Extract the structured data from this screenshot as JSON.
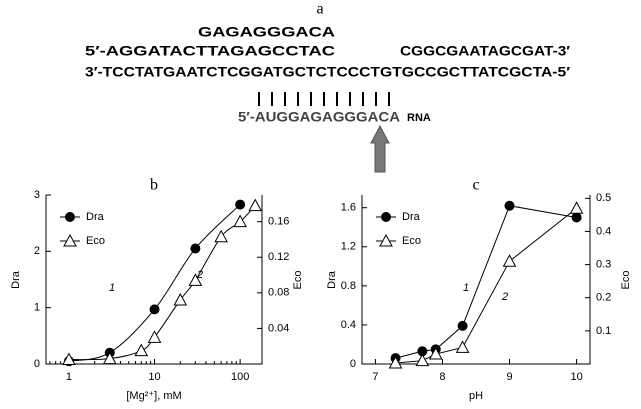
{
  "panel_a": {
    "label": "a",
    "top_strand": "GAGAGGGACA",
    "strand_5_left": "5′-AGGATACTTAGAGCCTAC",
    "strand_5_right": "CGGCGAATAGCGAT-3′",
    "strand_3": "3′-TCCTATGAATCTCGGATGCTCTCCCTGTGCCGCTTATCGCTA-5′",
    "rna_seq": "5′-AUGGAGAGGGACA",
    "rna_label": "RNA"
  },
  "chart_data": [
    {
      "type": "line",
      "panel_label": "b",
      "xlabel": "[Mg²⁺], mM",
      "ylabel": "Dra",
      "y2label": "Eco",
      "xscale": "log",
      "curve": "smooth",
      "xlim": [
        0.54,
        180
      ],
      "xticks": [
        1,
        10,
        100
      ],
      "ylim": [
        0,
        3
      ],
      "yticks": [
        0,
        1,
        2,
        3
      ],
      "y2lim": [
        0,
        0.19
      ],
      "y2ticks": [
        0.04,
        0.08,
        0.12,
        0.16
      ],
      "legend": "upper left",
      "annotations": [
        "1",
        "2"
      ],
      "series": [
        {
          "name": "Dra",
          "color": "#000000",
          "marker": "circle",
          "x": [
            1,
            3,
            10,
            30,
            100
          ],
          "values": [
            0.05,
            0.2,
            0.97,
            2.05,
            2.83
          ]
        },
        {
          "name": "Eco",
          "color": "#000000",
          "marker": "triangle",
          "axis": "y2",
          "x": [
            1,
            3,
            7,
            10,
            20,
            30,
            60,
            100,
            150
          ],
          "values": [
            0.005,
            0.006,
            0.015,
            0.03,
            0.072,
            0.094,
            0.143,
            0.16,
            0.178
          ]
        }
      ]
    },
    {
      "type": "line",
      "panel_label": "c",
      "xlabel": "pH",
      "ylabel": "Dra",
      "y2label": "Eco",
      "xscale": "linear",
      "curve": "straight",
      "xlim": [
        6.8,
        10.2
      ],
      "xticks": [
        7,
        8,
        9,
        10
      ],
      "ylim": [
        0,
        1.73
      ],
      "yticks": [
        0,
        0.4,
        0.8,
        1.2,
        1.6
      ],
      "y2lim": [
        0,
        0.51
      ],
      "y2ticks": [
        0.1,
        0.2,
        0.3,
        0.4,
        0.5
      ],
      "legend": "upper left",
      "annotations": [
        "1",
        "2"
      ],
      "series": [
        {
          "name": "Dra",
          "color": "#000000",
          "marker": "circle",
          "x": [
            7.3,
            7.7,
            7.9,
            8.3,
            9,
            10
          ],
          "values": [
            0.06,
            0.13,
            0.15,
            0.39,
            1.62,
            1.5
          ]
        },
        {
          "name": "Eco",
          "color": "#000000",
          "marker": "triangle",
          "axis": "y2",
          "x": [
            7.3,
            7.7,
            7.9,
            8.3,
            9,
            10
          ],
          "values": [
            0.003,
            0.01,
            0.03,
            0.05,
            0.31,
            0.47
          ]
        }
      ]
    }
  ]
}
